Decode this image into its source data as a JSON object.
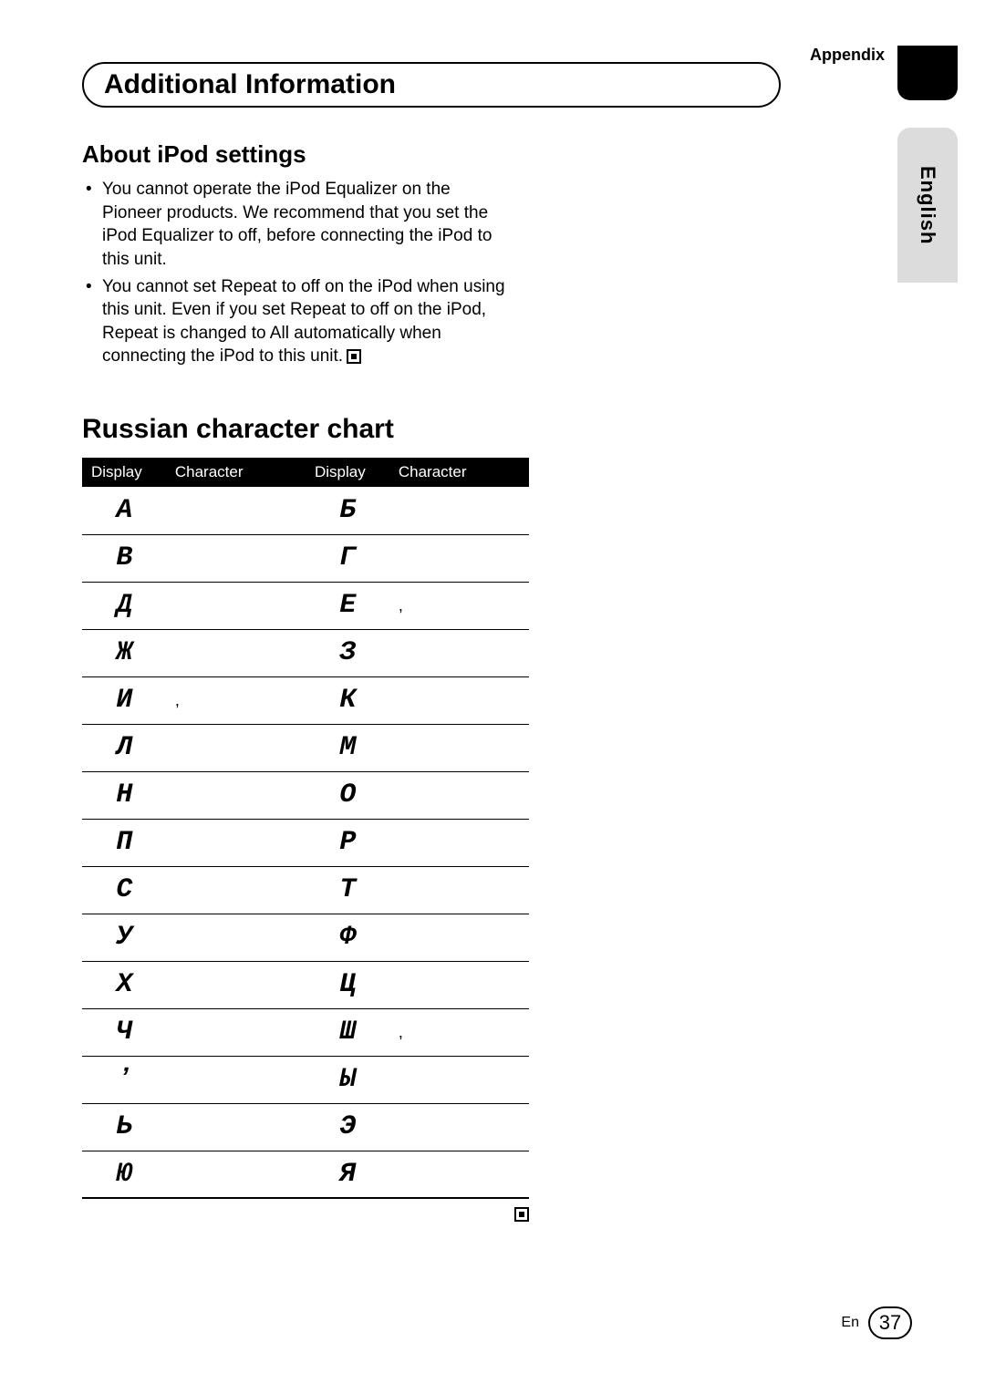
{
  "appendix_label": "Appendix",
  "language_tab": "English",
  "section_header": "Additional Information",
  "about": {
    "heading": "About iPod settings",
    "bullets": [
      "You cannot operate the iPod Equalizer on the Pioneer products. We recommend that you set the iPod Equalizer to off, before connecting the iPod to this unit.",
      "You cannot set Repeat to off on the iPod when using this unit. Even if you set Repeat to off on the iPod, Repeat is changed to All automatically when connecting the iPod to this unit."
    ]
  },
  "chart": {
    "heading": "Russian character chart",
    "columns": [
      "Display",
      "Character",
      "Display",
      "Character"
    ],
    "rows": [
      {
        "d1": "А",
        "c1": "",
        "d2": "Б",
        "c2": ""
      },
      {
        "d1": "В",
        "c1": "",
        "d2": "Г",
        "c2": ""
      },
      {
        "d1": "Д",
        "c1": "",
        "d2": "Е",
        "c2": ","
      },
      {
        "d1": "Ж",
        "c1": "",
        "d2": "З",
        "c2": ""
      },
      {
        "d1": "И",
        "c1": ",",
        "d2": "К",
        "c2": ""
      },
      {
        "d1": "Л",
        "c1": "",
        "d2": "М",
        "c2": ""
      },
      {
        "d1": "Н",
        "c1": "",
        "d2": "О",
        "c2": ""
      },
      {
        "d1": "П",
        "c1": "",
        "d2": "Р",
        "c2": ""
      },
      {
        "d1": "С",
        "c1": "",
        "d2": "Т",
        "c2": ""
      },
      {
        "d1": "У",
        "c1": "",
        "d2": "Ф",
        "c2": ""
      },
      {
        "d1": "Х",
        "c1": "",
        "d2": "Ц",
        "c2": ""
      },
      {
        "d1": "Ч",
        "c1": "",
        "d2": "Ш",
        "c2": ","
      },
      {
        "d1": "ʼ",
        "c1": "",
        "d2": "Ы",
        "c2": ""
      },
      {
        "d1": "Ь",
        "c1": "",
        "d2": "Э",
        "c2": ""
      },
      {
        "d1": "Ю",
        "c1": "",
        "d2": "Я",
        "c2": ""
      }
    ]
  },
  "footer": {
    "lang": "En",
    "page": "37"
  },
  "colors": {
    "text": "#000000",
    "bg": "#ffffff",
    "tab_gray": "#dcdcdc",
    "header_bg": "#000000",
    "header_fg": "#ffffff"
  },
  "fonts": {
    "body_size_pt": 14,
    "heading_size_pt": 22,
    "section_size_pt": 22,
    "display_cell_family": "monospace"
  }
}
